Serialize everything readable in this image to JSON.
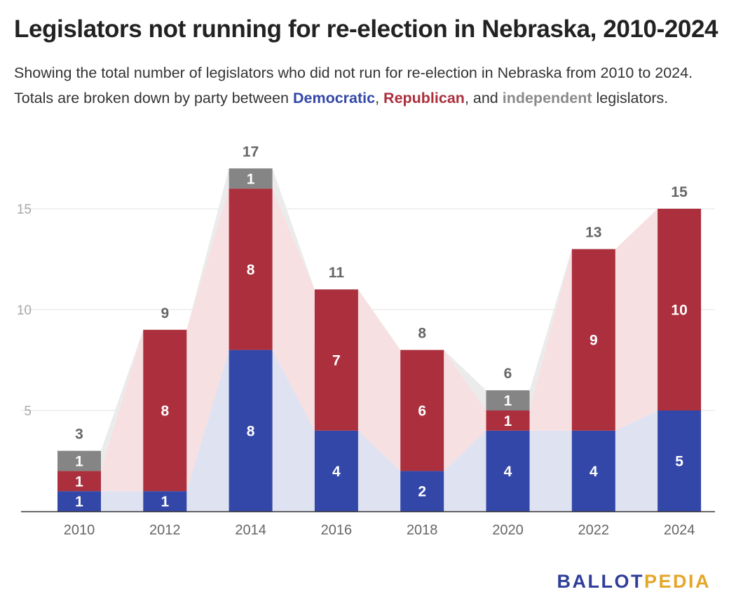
{
  "title": "Legislators not running for re-election in Nebraska, 2010-2024",
  "subtitle": {
    "before": "Showing the total number of legislators who did not run for re-election in Nebraska from 2010 to 2024. Totals are broken down by party between ",
    "democratic": "Democratic",
    "sep1": ", ",
    "republican": "Republican",
    "sep2": ", and ",
    "independent": "independent",
    "after": " legislators."
  },
  "logo": {
    "part1": "BALLOT",
    "part2": "PEDIA"
  },
  "colors": {
    "democratic": "#3347a8",
    "republican": "#ab2f3d",
    "independent": "#858585",
    "democratic_area": "#dfe2f1",
    "republican_area": "#f6e0e2",
    "independent_area": "#ebebeb",
    "logo_primary": "#2f3e99",
    "logo_accent": "#e4a72a"
  },
  "chart_data": {
    "type": "bar",
    "stacked": true,
    "categories": [
      "2010",
      "2012",
      "2014",
      "2016",
      "2018",
      "2020",
      "2022",
      "2024"
    ],
    "series": [
      {
        "name": "Democratic",
        "values": [
          1,
          1,
          8,
          4,
          2,
          4,
          4,
          5
        ]
      },
      {
        "name": "Republican",
        "values": [
          1,
          8,
          8,
          7,
          6,
          1,
          9,
          10
        ]
      },
      {
        "name": "independent",
        "values": [
          1,
          0,
          1,
          0,
          0,
          1,
          0,
          0
        ]
      }
    ],
    "totals": [
      3,
      9,
      17,
      11,
      8,
      6,
      13,
      15
    ],
    "yticks": [
      5,
      10,
      15
    ],
    "ylim": [
      0,
      17
    ],
    "grid": true
  }
}
